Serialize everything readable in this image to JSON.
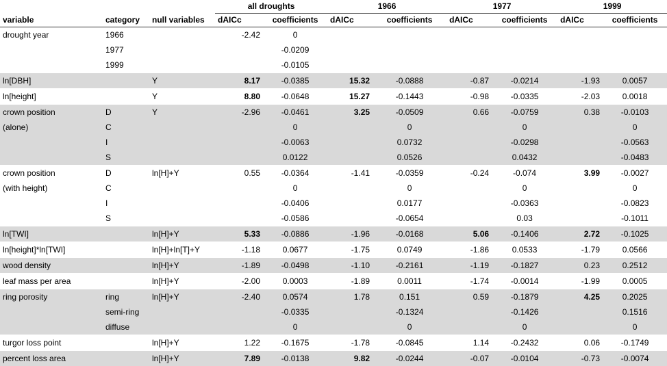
{
  "table": {
    "groups": [
      "all droughts",
      "1966",
      "1977",
      "1999"
    ],
    "headers": {
      "variable": "variable",
      "category": "category",
      "null_variables": "null variables",
      "daicc": "dAICc",
      "coefficients": "coefficients"
    },
    "rows": [
      {
        "variable": "drought year",
        "category": "1966",
        "nullv": "",
        "vals": [
          "-2.42",
          "0",
          "",
          "",
          "",
          "",
          "",
          ""
        ],
        "bold": [],
        "shade": false
      },
      {
        "variable": "",
        "category": "1977",
        "nullv": "",
        "vals": [
          "",
          "-0.0209",
          "",
          "",
          "",
          "",
          "",
          ""
        ],
        "bold": [],
        "shade": false
      },
      {
        "variable": "",
        "category": "1999",
        "nullv": "",
        "vals": [
          "",
          "-0.0105",
          "",
          "",
          "",
          "",
          "",
          ""
        ],
        "bold": [],
        "shade": false
      },
      {
        "variable": "ln[DBH]",
        "category": "",
        "nullv": "Y",
        "vals": [
          "8.17",
          "-0.0385",
          "15.32",
          "-0.0888",
          "-0.87",
          "-0.0214",
          "-1.93",
          "0.0057"
        ],
        "bold": [
          0,
          2
        ],
        "shade": true
      },
      {
        "variable": "ln[height]",
        "category": "",
        "nullv": "Y",
        "vals": [
          "8.80",
          "-0.0648",
          "15.27",
          "-0.1443",
          "-0.98",
          "-0.0335",
          "-2.03",
          "0.0018"
        ],
        "bold": [
          0,
          2
        ],
        "shade": false
      },
      {
        "variable": "crown position",
        "category": "D",
        "nullv": "Y",
        "vals": [
          "-2.96",
          "-0.0461",
          "3.25",
          "-0.0509",
          "0.66",
          "-0.0759",
          "0.38",
          "-0.0103"
        ],
        "bold": [
          2
        ],
        "shade": true
      },
      {
        "variable": "(alone)",
        "indent": true,
        "category": "C",
        "nullv": "",
        "vals": [
          "",
          "0",
          "",
          "0",
          "",
          "0",
          "",
          "0"
        ],
        "bold": [],
        "shade": true
      },
      {
        "variable": "",
        "category": "I",
        "nullv": "",
        "vals": [
          "",
          "-0.0063",
          "",
          "0.0732",
          "",
          "-0.0298",
          "",
          "-0.0563"
        ],
        "bold": [],
        "shade": true
      },
      {
        "variable": "",
        "category": "S",
        "nullv": "",
        "vals": [
          "",
          "0.0122",
          "",
          "0.0526",
          "",
          "0.0432",
          "",
          "-0.0483"
        ],
        "bold": [],
        "shade": true
      },
      {
        "variable": "crown position",
        "category": "D",
        "nullv": "ln[H]+Y",
        "vals": [
          "0.55",
          "-0.0364",
          "-1.41",
          "-0.0359",
          "-0.24",
          "-0.074",
          "3.99",
          "-0.0027"
        ],
        "bold": [
          6
        ],
        "shade": false
      },
      {
        "variable": "(with height)",
        "indent": true,
        "category": "C",
        "nullv": "",
        "vals": [
          "",
          "0",
          "",
          "0",
          "",
          "0",
          "",
          "0"
        ],
        "bold": [],
        "shade": false
      },
      {
        "variable": "",
        "category": "I",
        "nullv": "",
        "vals": [
          "",
          "-0.0406",
          "",
          "0.0177",
          "",
          "-0.0363",
          "",
          "-0.0823"
        ],
        "bold": [],
        "shade": false
      },
      {
        "variable": "",
        "category": "S",
        "nullv": "",
        "vals": [
          "",
          "-0.0586",
          "",
          "-0.0654",
          "",
          "0.03",
          "",
          "-0.1011"
        ],
        "bold": [],
        "shade": false
      },
      {
        "variable": "ln[TWI]",
        "category": "",
        "nullv": "ln[H]+Y",
        "vals": [
          "5.33",
          "-0.0886",
          "-1.96",
          "-0.0168",
          "5.06",
          "-0.1406",
          "2.72",
          "-0.1025"
        ],
        "bold": [
          0,
          4,
          6
        ],
        "shade": true
      },
      {
        "variable": "ln[height]*ln[TWI]",
        "category": "",
        "nullv": "ln[H]+ln[T]+Y",
        "vals": [
          "-1.18",
          "0.0677",
          "-1.75",
          "0.0749",
          "-1.86",
          "0.0533",
          "-1.79",
          "0.0566"
        ],
        "bold": [],
        "shade": false
      },
      {
        "variable": "wood density",
        "category": "",
        "nullv": "ln[H]+Y",
        "vals": [
          "-1.89",
          "-0.0498",
          "-1.10",
          "-0.2161",
          "-1.19",
          "-0.1827",
          "0.23",
          "0.2512"
        ],
        "bold": [],
        "shade": true
      },
      {
        "variable": "leaf mass per area",
        "category": "",
        "nullv": "ln[H]+Y",
        "vals": [
          "-2.00",
          "0.0003",
          "-1.89",
          "0.0011",
          "-1.74",
          "-0.0014",
          "-1.99",
          "0.0005"
        ],
        "bold": [],
        "shade": false
      },
      {
        "variable": "ring porosity",
        "category": "ring",
        "nullv": "ln[H]+Y",
        "vals": [
          "-2.40",
          "0.0574",
          "1.78",
          "0.151",
          "0.59",
          "-0.1879",
          "4.25",
          "0.2025"
        ],
        "bold": [
          6
        ],
        "shade": true
      },
      {
        "variable": "",
        "category": "semi-ring",
        "nullv": "",
        "vals": [
          "",
          "-0.0335",
          "",
          "-0.1324",
          "",
          "-0.1426",
          "",
          "0.1516"
        ],
        "bold": [],
        "shade": true
      },
      {
        "variable": "",
        "category": "diffuse",
        "nullv": "",
        "vals": [
          "",
          "0",
          "",
          "0",
          "",
          "0",
          "",
          "0"
        ],
        "bold": [],
        "shade": true
      },
      {
        "variable": "turgor loss point",
        "category": "",
        "nullv": "ln[H]+Y",
        "vals": [
          "1.22",
          "-0.1675",
          "-1.78",
          "-0.0845",
          "1.14",
          "-0.2432",
          "0.06",
          "-0.1749"
        ],
        "bold": [],
        "shade": false
      },
      {
        "variable": "percent loss area",
        "category": "",
        "nullv": "ln[H]+Y",
        "vals": [
          "7.89",
          "-0.0138",
          "9.82",
          "-0.0244",
          "-0.07",
          "-0.0104",
          "-0.73",
          "-0.0074"
        ],
        "bold": [
          0,
          2
        ],
        "shade": true
      }
    ]
  }
}
